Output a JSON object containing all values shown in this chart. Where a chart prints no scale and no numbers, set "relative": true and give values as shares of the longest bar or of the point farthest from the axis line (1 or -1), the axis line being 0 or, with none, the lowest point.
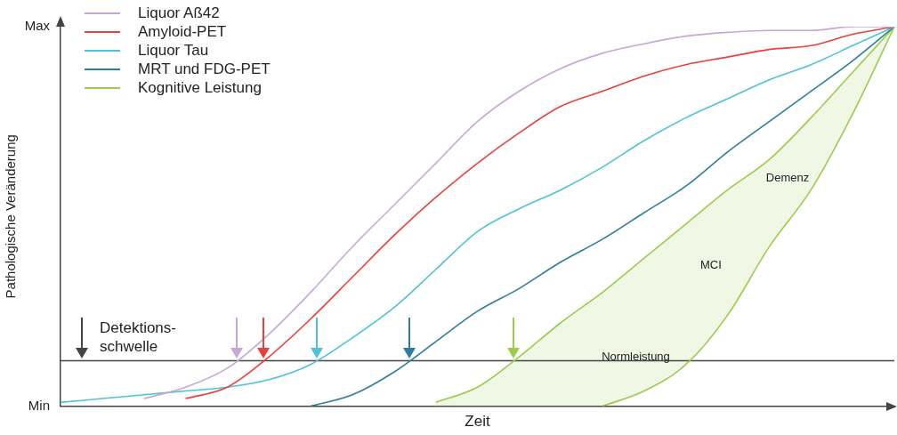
{
  "chart_data": {
    "type": "line",
    "xlabel": "Zeit",
    "ylabel": "Pathologische Veränderung",
    "categories": [
      null,
      null,
      null,
      null,
      null,
      null,
      null,
      null,
      null,
      null,
      null,
      null,
      null,
      null,
      null,
      null,
      null,
      null,
      null,
      null,
      null
    ],
    "relative": true,
    "tick_labels": false,
    "grid": false,
    "legend": "top left",
    "marker": "none",
    "line_style": "solid",
    "series": [
      {
        "name": "Liquor Aß42",
        "color": "#c9a6d6",
        "values": [
          null,
          null,
          0.02,
          0.05,
          0.1,
          0.19,
          0.3,
          0.42,
          0.53,
          0.64,
          0.75,
          0.83,
          0.89,
          0.93,
          0.955,
          0.975,
          0.985,
          0.99,
          0.99,
          1,
          1
        ]
      },
      {
        "name": "Amyloid-PET",
        "color": "#e8413c",
        "values": [
          null,
          null,
          null,
          0.02,
          0.05,
          0.13,
          0.23,
          0.34,
          0.45,
          0.55,
          0.64,
          0.72,
          0.79,
          0.83,
          0.87,
          0.9,
          0.92,
          0.94,
          0.95,
          0.98,
          1
        ]
      },
      {
        "name": "Liquor Tau",
        "color": "#4cc3d9",
        "values": [
          0.01,
          0.02,
          0.03,
          0.04,
          0.05,
          0.07,
          0.11,
          0.18,
          0.26,
          0.36,
          0.46,
          0.52,
          0.57,
          0.63,
          0.7,
          0.76,
          0.81,
          0.86,
          0.9,
          0.95,
          1
        ]
      },
      {
        "name": "MRT und FDG-PET",
        "color": "#2b7ea1",
        "values": [
          null,
          null,
          null,
          null,
          null,
          null,
          0,
          0.03,
          0.09,
          0.17,
          0.25,
          0.31,
          0.38,
          0.44,
          0.51,
          0.58,
          0.67,
          0.75,
          0.83,
          0.91,
          1
        ]
      },
      {
        "name": "Kognitive Leistung",
        "color": "#9ccc4c",
        "values": [
          null,
          null,
          null,
          null,
          null,
          null,
          null,
          null,
          null,
          0.01,
          0.05,
          0.13,
          0.22,
          0.3,
          0.39,
          0.48,
          0.57,
          0.65,
          0.76,
          0.88,
          1
        ],
        "upper": [
          null,
          null,
          null,
          null,
          null,
          null,
          null,
          null,
          null,
          0.01,
          0.05,
          0.13,
          0.22,
          0.3,
          0.39,
          0.48,
          0.57,
          0.65,
          0.76,
          0.88,
          1
        ],
        "lower": [
          null,
          null,
          null,
          null,
          null,
          null,
          null,
          null,
          null,
          0,
          0,
          0,
          0,
          0,
          0.04,
          0.11,
          0.24,
          0.42,
          0.57,
          0.77,
          1
        ]
      },
      {
        "color": "#9ccc4c",
        "values": [
          null,
          null,
          null,
          null,
          null,
          null,
          null,
          null,
          null,
          null,
          null,
          null,
          null,
          0,
          0.04,
          0.11,
          0.24,
          0.42,
          0.57,
          0.77,
          1
        ]
      }
    ],
    "ref_lines": [
      {
        "axis": "y",
        "value": 0.12,
        "label": "Detektions-schwelle",
        "color": "#444444"
      }
    ],
    "annotations": [
      "Min",
      "Max",
      "Demenz",
      "MCI",
      "Normleistung"
    ]
  }
}
